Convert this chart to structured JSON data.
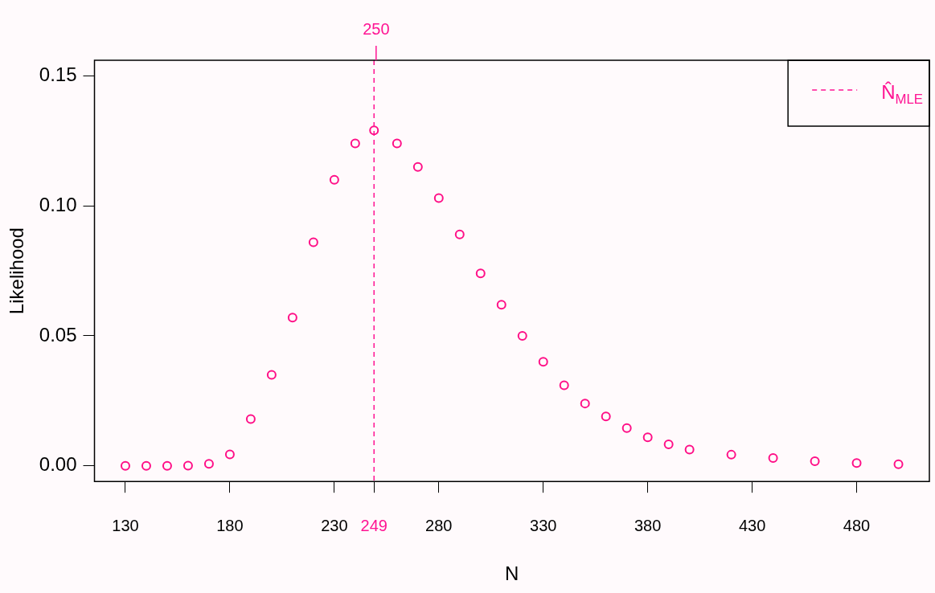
{
  "chart_data": {
    "type": "scatter",
    "xlabel": "N",
    "ylabel": "Likelihood",
    "marker": "circle",
    "legend": "top right",
    "xlim": [
      115.2,
      514.8
    ],
    "xticks": [
      130,
      180,
      230,
      {
        "value": 249,
        "label": "249"
      },
      280,
      330,
      380,
      430,
      480
    ],
    "annotations": [
      {
        "text": "250",
        "x": 250,
        "y": 0.156
      }
    ],
    "ylim": [
      -0.006,
      0.156
    ],
    "yticks": [
      {
        "value": 0,
        "label": "0.00"
      },
      {
        "value": 0.05,
        "label": "0.05"
      },
      {
        "value": 0.1,
        "label": "0.10"
      },
      {
        "value": 0.15,
        "label": "0.15"
      }
    ],
    "x": [
      130,
      140,
      150,
      160,
      170,
      180,
      190,
      200,
      210,
      220,
      230,
      240,
      249,
      260,
      270,
      280,
      290,
      300,
      310,
      320,
      330,
      340,
      350,
      360,
      370,
      380,
      390,
      400,
      420,
      440,
      460,
      480,
      500
    ],
    "series": [
      {
        "color": "#ff0f87",
        "values": [
          0,
          0,
          0,
          0.0001,
          0.0008,
          0.0044,
          0.018,
          0.035,
          0.057,
          0.086,
          0.11,
          0.124,
          0.129,
          0.124,
          0.115,
          0.103,
          0.089,
          0.074,
          0.062,
          0.05,
          0.04,
          0.031,
          0.024,
          0.019,
          0.0145,
          0.011,
          0.0083,
          0.0063,
          0.0043,
          0.003,
          0.0018,
          0.0011,
          0.0006
        ]
      }
    ],
    "ref_lines": [
      {
        "axis": "x",
        "value": 249,
        "label": "N̂$_{MLE}$",
        "color": "#ff1493",
        "line_style": "dashed"
      }
    ]
  }
}
